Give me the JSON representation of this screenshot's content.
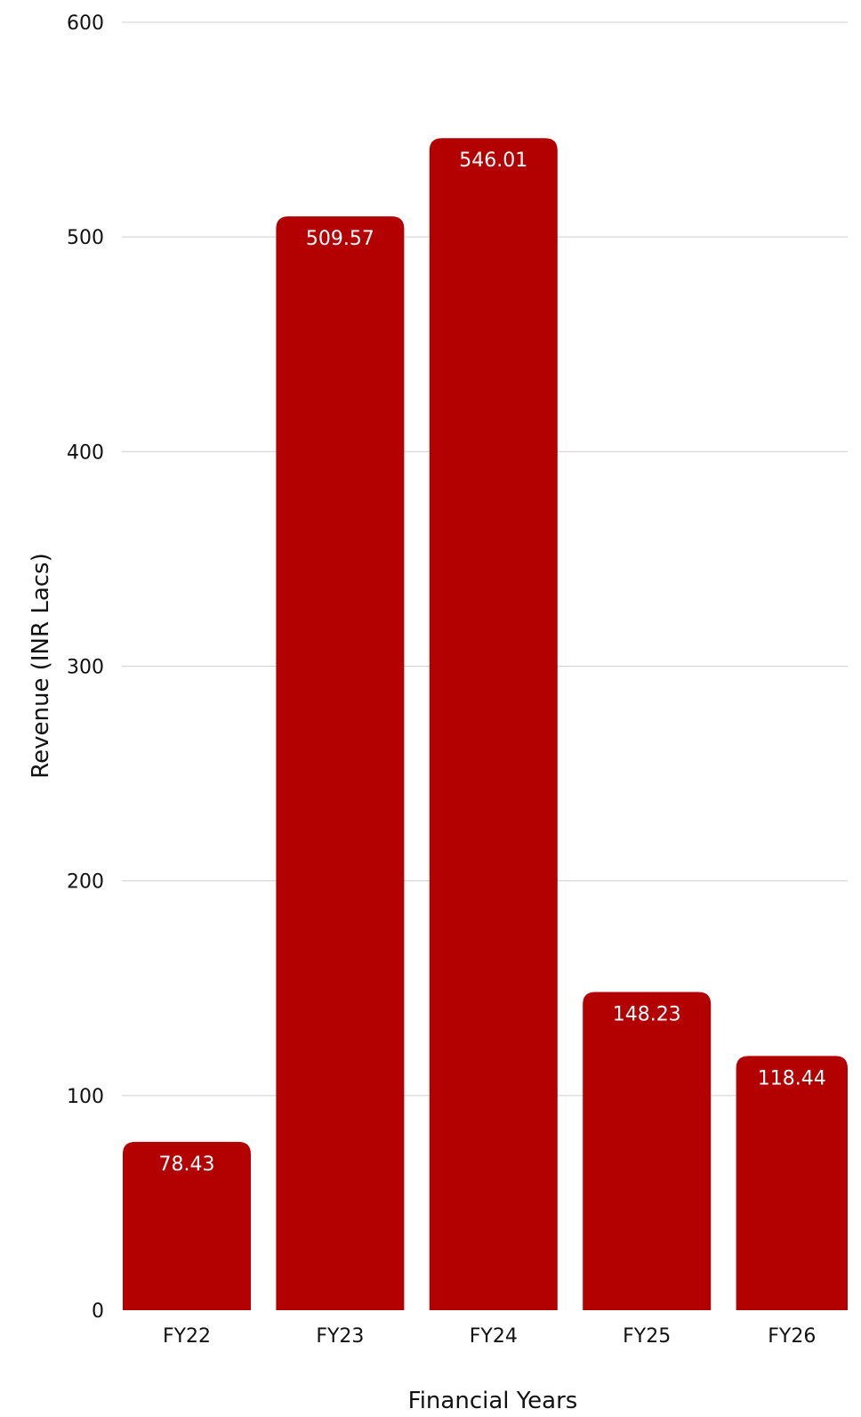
{
  "chart_data": {
    "type": "bar",
    "categories": [
      "FY22",
      "FY23",
      "FY24",
      "FY25",
      "FY26"
    ],
    "values": [
      78.43,
      509.57,
      546.01,
      148.23,
      118.44
    ],
    "value_labels": [
      "78.43",
      "509.57",
      "546.01",
      "148.23",
      "118.44"
    ],
    "title": "",
    "xlabel": "Financial Years",
    "ylabel": "Revenue (INR Lacs)",
    "ylim": [
      0,
      600
    ],
    "yticks": [
      "0",
      "100",
      "200",
      "300",
      "400",
      "500",
      "600"
    ],
    "ytick_values": [
      0,
      100,
      200,
      300,
      400,
      500,
      600
    ],
    "grid": true,
    "legend": "none",
    "bar_color": "#b30000"
  }
}
